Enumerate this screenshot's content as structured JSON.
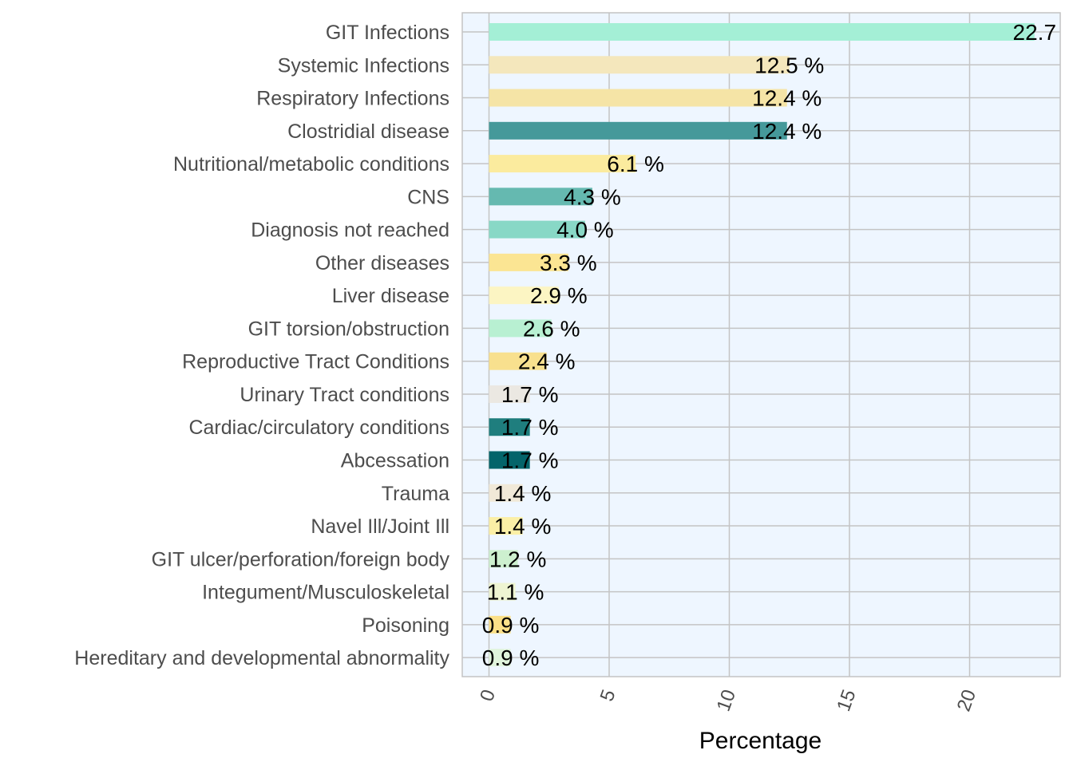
{
  "chart_data": {
    "type": "bar",
    "orientation": "horizontal",
    "title": "",
    "xlabel": "Percentage",
    "ylabel": "",
    "xlim": [
      -1.1,
      23.8
    ],
    "x_ticks": [
      0,
      5,
      10,
      15,
      20
    ],
    "x_tick_labels": [
      "0",
      "5",
      "10",
      "15",
      "20"
    ],
    "grid": true,
    "value_suffix": " %",
    "categories": [
      "GIT Infections",
      "Systemic Infections",
      "Respiratory Infections",
      "Clostridial disease",
      "Nutritional/metabolic conditions",
      "CNS",
      "Diagnosis not reached",
      "Other diseases",
      "Liver disease",
      "GIT torsion/obstruction",
      "Reproductive Tract Conditions",
      "Urinary Tract conditions",
      "Cardiac/circulatory conditions",
      "Abcessation",
      "Trauma",
      "Navel Ill/Joint Ill",
      "GIT ulcer/perforation/foreign body",
      "Integument/Musculoskeletal",
      "Poisoning",
      "Hereditary and developmental abnormality"
    ],
    "values": [
      22.7,
      12.5,
      12.4,
      12.4,
      6.1,
      4.3,
      4.0,
      3.3,
      2.9,
      2.6,
      2.4,
      1.7,
      1.7,
      1.7,
      1.4,
      1.4,
      1.2,
      1.1,
      0.9,
      0.9
    ],
    "value_labels": [
      "22.7",
      "12.5 %",
      "12.4 %",
      "12.4 %",
      "6.1 %",
      "4.3 %",
      "4.0 %",
      "3.3 %",
      "2.9 %",
      "2.6 %",
      "2.4 %",
      "1.7 %",
      "1.7 %",
      "1.7 %",
      "1.4 %",
      "1.4 %",
      "1.2 %",
      "1.1 %",
      "0.9 %",
      "0.9 %"
    ],
    "colors": [
      "#a4efd6",
      "#f4e7bc",
      "#f5e4a6",
      "#45999a",
      "#fbeb9e",
      "#65b9b0",
      "#88d8c6",
      "#fbe593",
      "#fcf5c3",
      "#b8f0d2",
      "#f8e08e",
      "#ebe8e2",
      "#1f7e7e",
      "#04646a",
      "#f1e9d8",
      "#fbefa6",
      "#cdf0cf",
      "#eef5d2",
      "#fbe088",
      "#e0f4dc"
    ],
    "panel_background": "#eef6ff",
    "grid_color": "#c4c4c4"
  }
}
